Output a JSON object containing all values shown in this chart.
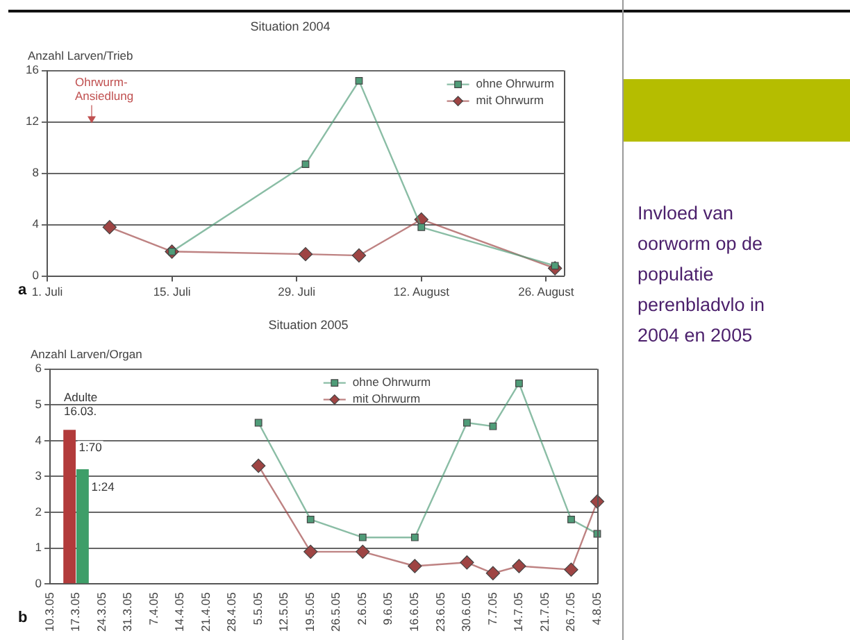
{
  "chart_data": [
    {
      "type": "line",
      "title": "Situation 2004",
      "ylabel": "Anzahl Larven/Trieb",
      "series": [
        {
          "name": "ohne Ohrwurm",
          "color": "#4f9c78",
          "marker": "square",
          "x": [
            "--07-15",
            "--07-30",
            "--08-05",
            "--08-12",
            "--08-27"
          ],
          "values": [
            1.9,
            8.7,
            15.2,
            3.8,
            0.8
          ]
        },
        {
          "name": "mit Ohrwurm",
          "color": "#9e4443",
          "marker": "diamond",
          "x": [
            "--07-08",
            "--07-15",
            "--07-30",
            "--08-05",
            "--08-12",
            "--08-27"
          ],
          "values": [
            3.8,
            1.9,
            1.7,
            1.6,
            4.4,
            0.6
          ]
        }
      ],
      "xlim": [
        "--07-01",
        "--08-28"
      ],
      "xticks": [
        {
          "value": "--07-01",
          "label": "1. Juli"
        },
        {
          "value": "--07-15",
          "label": "15. Juli"
        },
        {
          "value": "--07-29",
          "label": "29. Juli"
        },
        {
          "value": "--08-12",
          "label": "12. August"
        },
        {
          "value": "--08-26",
          "label": "26. August"
        }
      ],
      "ylim": [
        0,
        16
      ],
      "yticks": [
        0,
        4,
        8,
        12,
        16
      ],
      "grid": "y",
      "legend": "top right",
      "annotations": [
        "Ohrwurm-Ansiedlung",
        "a"
      ]
    },
    {
      "type": "line",
      "title": "Situation 2005",
      "ylabel": "Anzahl Larven/Organ",
      "categories": [
        "10.3.05",
        "17.3.05",
        "24.3.05",
        "31.3.05",
        "7.4.05",
        "14.4.05",
        "21.4.05",
        "28.4.05",
        "5.5.05",
        "12.5.05",
        "19.5.05",
        "26.5.05",
        "2.6.05",
        "9.6.05",
        "16.6.05",
        "23.6.05",
        "30.6.05",
        "7.7.05",
        "14.7.05",
        "21.7.05",
        "26.7.05",
        "4.8.05"
      ],
      "series": [
        {
          "type": "bar",
          "color": "#b23b3b",
          "values": [
            null,
            4.3,
            null,
            null,
            null,
            null,
            null,
            null,
            null,
            null,
            null,
            null,
            null,
            null,
            null,
            null,
            null,
            null,
            null,
            null,
            null,
            null
          ]
        },
        {
          "type": "bar",
          "color": "#3e9e68",
          "values": [
            null,
            3.2,
            null,
            null,
            null,
            null,
            null,
            null,
            null,
            null,
            null,
            null,
            null,
            null,
            null,
            null,
            null,
            null,
            null,
            null,
            null,
            null
          ]
        },
        {
          "name": "ohne Ohrwurm",
          "color": "#4f9c78",
          "marker": "square",
          "values": [
            null,
            null,
            null,
            null,
            null,
            null,
            null,
            null,
            4.5,
            null,
            1.8,
            null,
            1.3,
            null,
            1.3,
            null,
            4.5,
            4.4,
            5.6,
            null,
            1.8,
            1.4
          ]
        },
        {
          "name": "mit Ohrwurm",
          "color": "#9e4443",
          "marker": "diamond",
          "values": [
            null,
            null,
            null,
            null,
            null,
            null,
            null,
            null,
            3.3,
            null,
            0.9,
            null,
            0.9,
            null,
            0.5,
            null,
            0.6,
            0.3,
            0.5,
            null,
            0.4,
            2.3
          ]
        }
      ],
      "ylim": [
        0,
        6
      ],
      "yticks": [
        0,
        1,
        2,
        3,
        4,
        5,
        6
      ],
      "grid": "y",
      "legend": "top",
      "annotations": [
        "Adulte 16.03.",
        {
          "text": "1:70",
          "x": "17.3.05",
          "y": 3.8
        },
        {
          "text": "1:24",
          "x": "17.3.05",
          "y": 2.7
        },
        "b"
      ]
    },
    {
      "type": "other",
      "title": "Invloed van oorworm op de populatie perenbladvlo in 2004 en 2005"
    }
  ]
}
